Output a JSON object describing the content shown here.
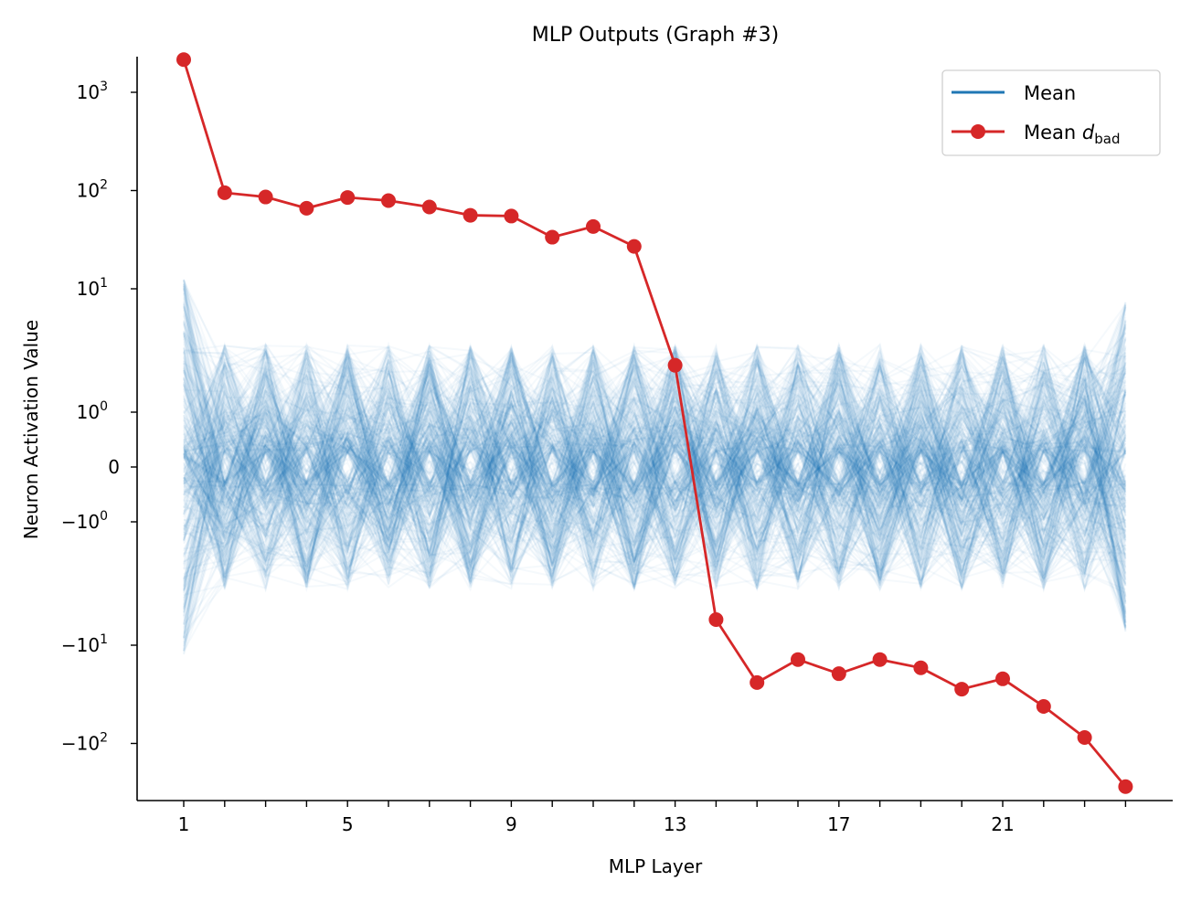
{
  "chart_data": {
    "type": "line",
    "title": "MLP Outputs (Graph #3)",
    "title_color": "#4c63d9",
    "xlabel": "MLP Layer",
    "ylabel": "Neuron Activation Value",
    "y_scale": "symlog",
    "xlim": [
      -0.14,
      25.15
    ],
    "ylim": [
      -385,
      2300
    ],
    "x_ticks": [
      1,
      2,
      3,
      4,
      5,
      6,
      7,
      8,
      9,
      10,
      11,
      12,
      13,
      14,
      15,
      16,
      17,
      18,
      19,
      20,
      21,
      22,
      23,
      24
    ],
    "x_tick_labels": [
      {
        "value": 1,
        "label": "1"
      },
      {
        "value": 5,
        "label": "5"
      },
      {
        "value": 9,
        "label": "9"
      },
      {
        "value": 13,
        "label": "13"
      },
      {
        "value": 17,
        "label": "17"
      },
      {
        "value": 21,
        "label": "21"
      }
    ],
    "y_tick_labels": [
      {
        "value": 1000,
        "base": "10",
        "exp": "3"
      },
      {
        "value": 100,
        "base": "10",
        "exp": "2"
      },
      {
        "value": 10,
        "base": "10",
        "exp": "1"
      },
      {
        "value": 1,
        "base": "10",
        "exp": "0"
      },
      {
        "value": 0,
        "base": "0",
        "exp": ""
      },
      {
        "value": -1,
        "base": "−10",
        "exp": "0"
      },
      {
        "value": -10,
        "base": "−10",
        "exp": "1"
      },
      {
        "value": -100,
        "base": "−10",
        "exp": "2"
      }
    ],
    "grid": false,
    "legend_position": "top-right",
    "series": [
      {
        "name": "Mean",
        "color": "#1f77b4",
        "style": "line"
      },
      {
        "name": "Mean d_bad",
        "legend_main": "Mean ",
        "legend_italic": "d",
        "legend_sub": "bad",
        "color": "#d62728",
        "style": "line-marker",
        "x": [
          1,
          2,
          3,
          4,
          5,
          6,
          7,
          8,
          9,
          10,
          11,
          12,
          13,
          14,
          15,
          16,
          17,
          18,
          19,
          20,
          21,
          22,
          23,
          24
        ],
        "y": [
          2150,
          95,
          86,
          66,
          85,
          79,
          68,
          56,
          55,
          33.5,
          43,
          27,
          2.4,
          -6.2,
          -24,
          -14,
          -19.5,
          -14,
          -17,
          -28,
          -22,
          -42,
          -87,
          -275
        ]
      }
    ],
    "neuron_traces_color": "#1f77b4"
  }
}
